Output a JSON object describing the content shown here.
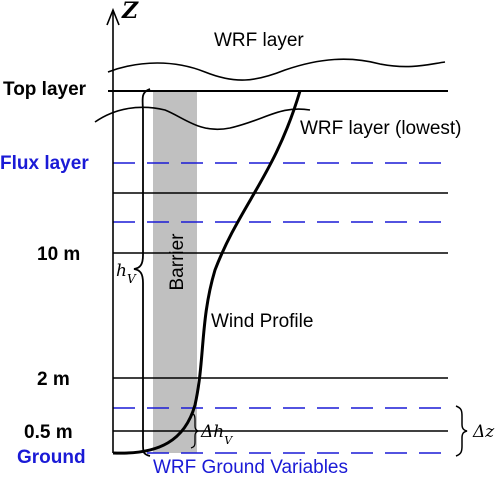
{
  "axis": {
    "label": "Z"
  },
  "labels": {
    "wrf_layer": "WRF layer",
    "wrf_layer_lowest": "WRF layer (lowest)",
    "top_layer": "Top layer",
    "flux_layer": "Flux layer",
    "ten_m": "10 m",
    "two_m": "2 m",
    "half_m": "0.5 m",
    "ground": "Ground",
    "barrier": "Barrier",
    "wind_profile": "Wind Profile",
    "ground_variables": "WRF Ground Variables"
  },
  "symbols": {
    "h_v": "h",
    "h_v_sub": "V",
    "delta_h_v": "Δh",
    "delta_h_v_sub": "V",
    "delta_z": "Δz"
  },
  "colors": {
    "black": "#000000",
    "blue": "#1a1ad6",
    "barrier_fill": "#c0c0c0"
  }
}
